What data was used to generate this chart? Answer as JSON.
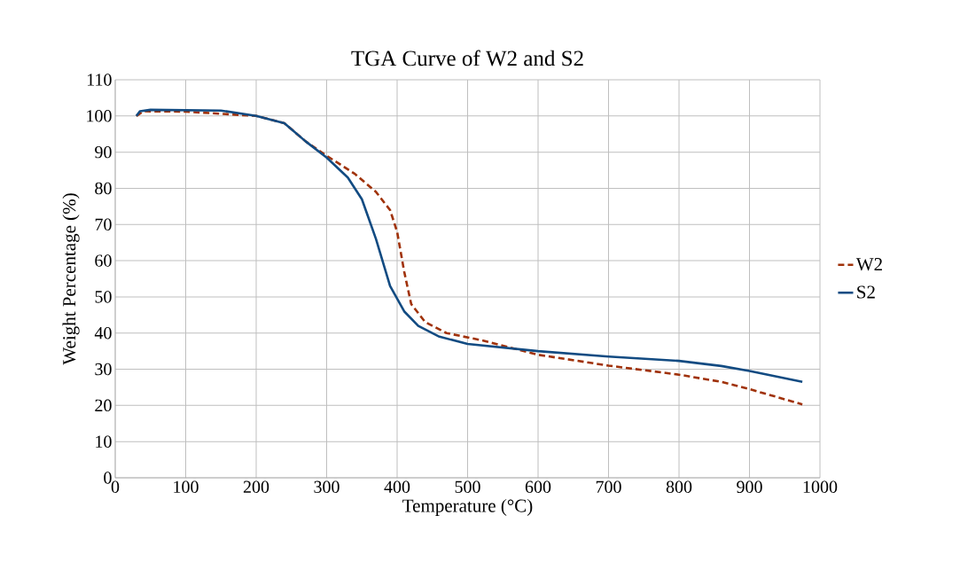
{
  "chart_data": {
    "type": "line",
    "title": "TGA Curve of W2 and S2",
    "xlabel": "Temperature (°C)",
    "ylabel": "Weight Percentage (%)",
    "xlim": [
      0,
      1000
    ],
    "xticks": [
      0,
      100,
      200,
      300,
      400,
      500,
      600,
      700,
      800,
      900,
      1000
    ],
    "ylim": [
      0,
      110
    ],
    "yticks": [
      0,
      10,
      20,
      30,
      40,
      50,
      60,
      70,
      80,
      90,
      100,
      110
    ],
    "grid": true,
    "legend": "right",
    "series": [
      {
        "name": "W2",
        "color": "#a0320a",
        "line_style": "dashed",
        "x": [
          30,
          40,
          100,
          200,
          240,
          270,
          300,
          340,
          370,
          390,
          400,
          410,
          420,
          440,
          470,
          520,
          600,
          700,
          800,
          860,
          900,
          975
        ],
        "values": [
          100,
          101.3,
          101.2,
          100,
          98,
          93,
          89,
          84,
          79,
          74,
          68,
          57,
          48,
          43,
          40,
          38,
          34,
          31,
          28.5,
          26.5,
          24.5,
          20.3
        ]
      },
      {
        "name": "S2",
        "color": "#124b82",
        "line_style": "solid",
        "x": [
          30,
          35,
          50,
          150,
          200,
          240,
          270,
          300,
          330,
          350,
          370,
          390,
          410,
          430,
          460,
          500,
          600,
          700,
          800,
          860,
          900,
          975
        ],
        "values": [
          100,
          101.3,
          101.7,
          101.5,
          100,
          98,
          93,
          88.5,
          83,
          77,
          66,
          53,
          46,
          42,
          39,
          37,
          35,
          33.5,
          32.3,
          30.9,
          29.5,
          26.5
        ]
      }
    ]
  }
}
